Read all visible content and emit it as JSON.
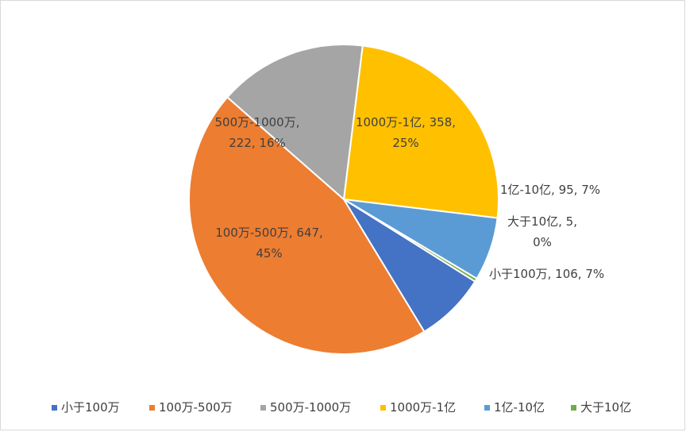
{
  "chart_data": {
    "type": "pie",
    "title": "",
    "categories": [
      "小于100万",
      "100万-500万",
      "500万-1000万",
      "1000万-1亿",
      "1亿-10亿",
      "大于10亿"
    ],
    "values": [
      106,
      647,
      222,
      358,
      95,
      5
    ],
    "percent_labels": [
      "7%",
      "45%",
      "16%",
      "25%",
      "7%",
      "0%"
    ],
    "colors": [
      "#4472C4",
      "#ED7D31",
      "#A5A5A5",
      "#FFC000",
      "#5B9BD5",
      "#70AD47"
    ],
    "data_labels": [
      [
        "小于100万, 106, 7%"
      ],
      [
        "100万-500万, 647,",
        "45%"
      ],
      [
        "500万-1000万,",
        "222, 16%"
      ],
      [
        "1000万-1亿, 358,",
        "25%"
      ],
      [
        "1亿-10亿, 95, 7%"
      ],
      [
        "大于10亿, 5,",
        "0%"
      ]
    ],
    "legend_position": "bottom",
    "grid": false
  }
}
